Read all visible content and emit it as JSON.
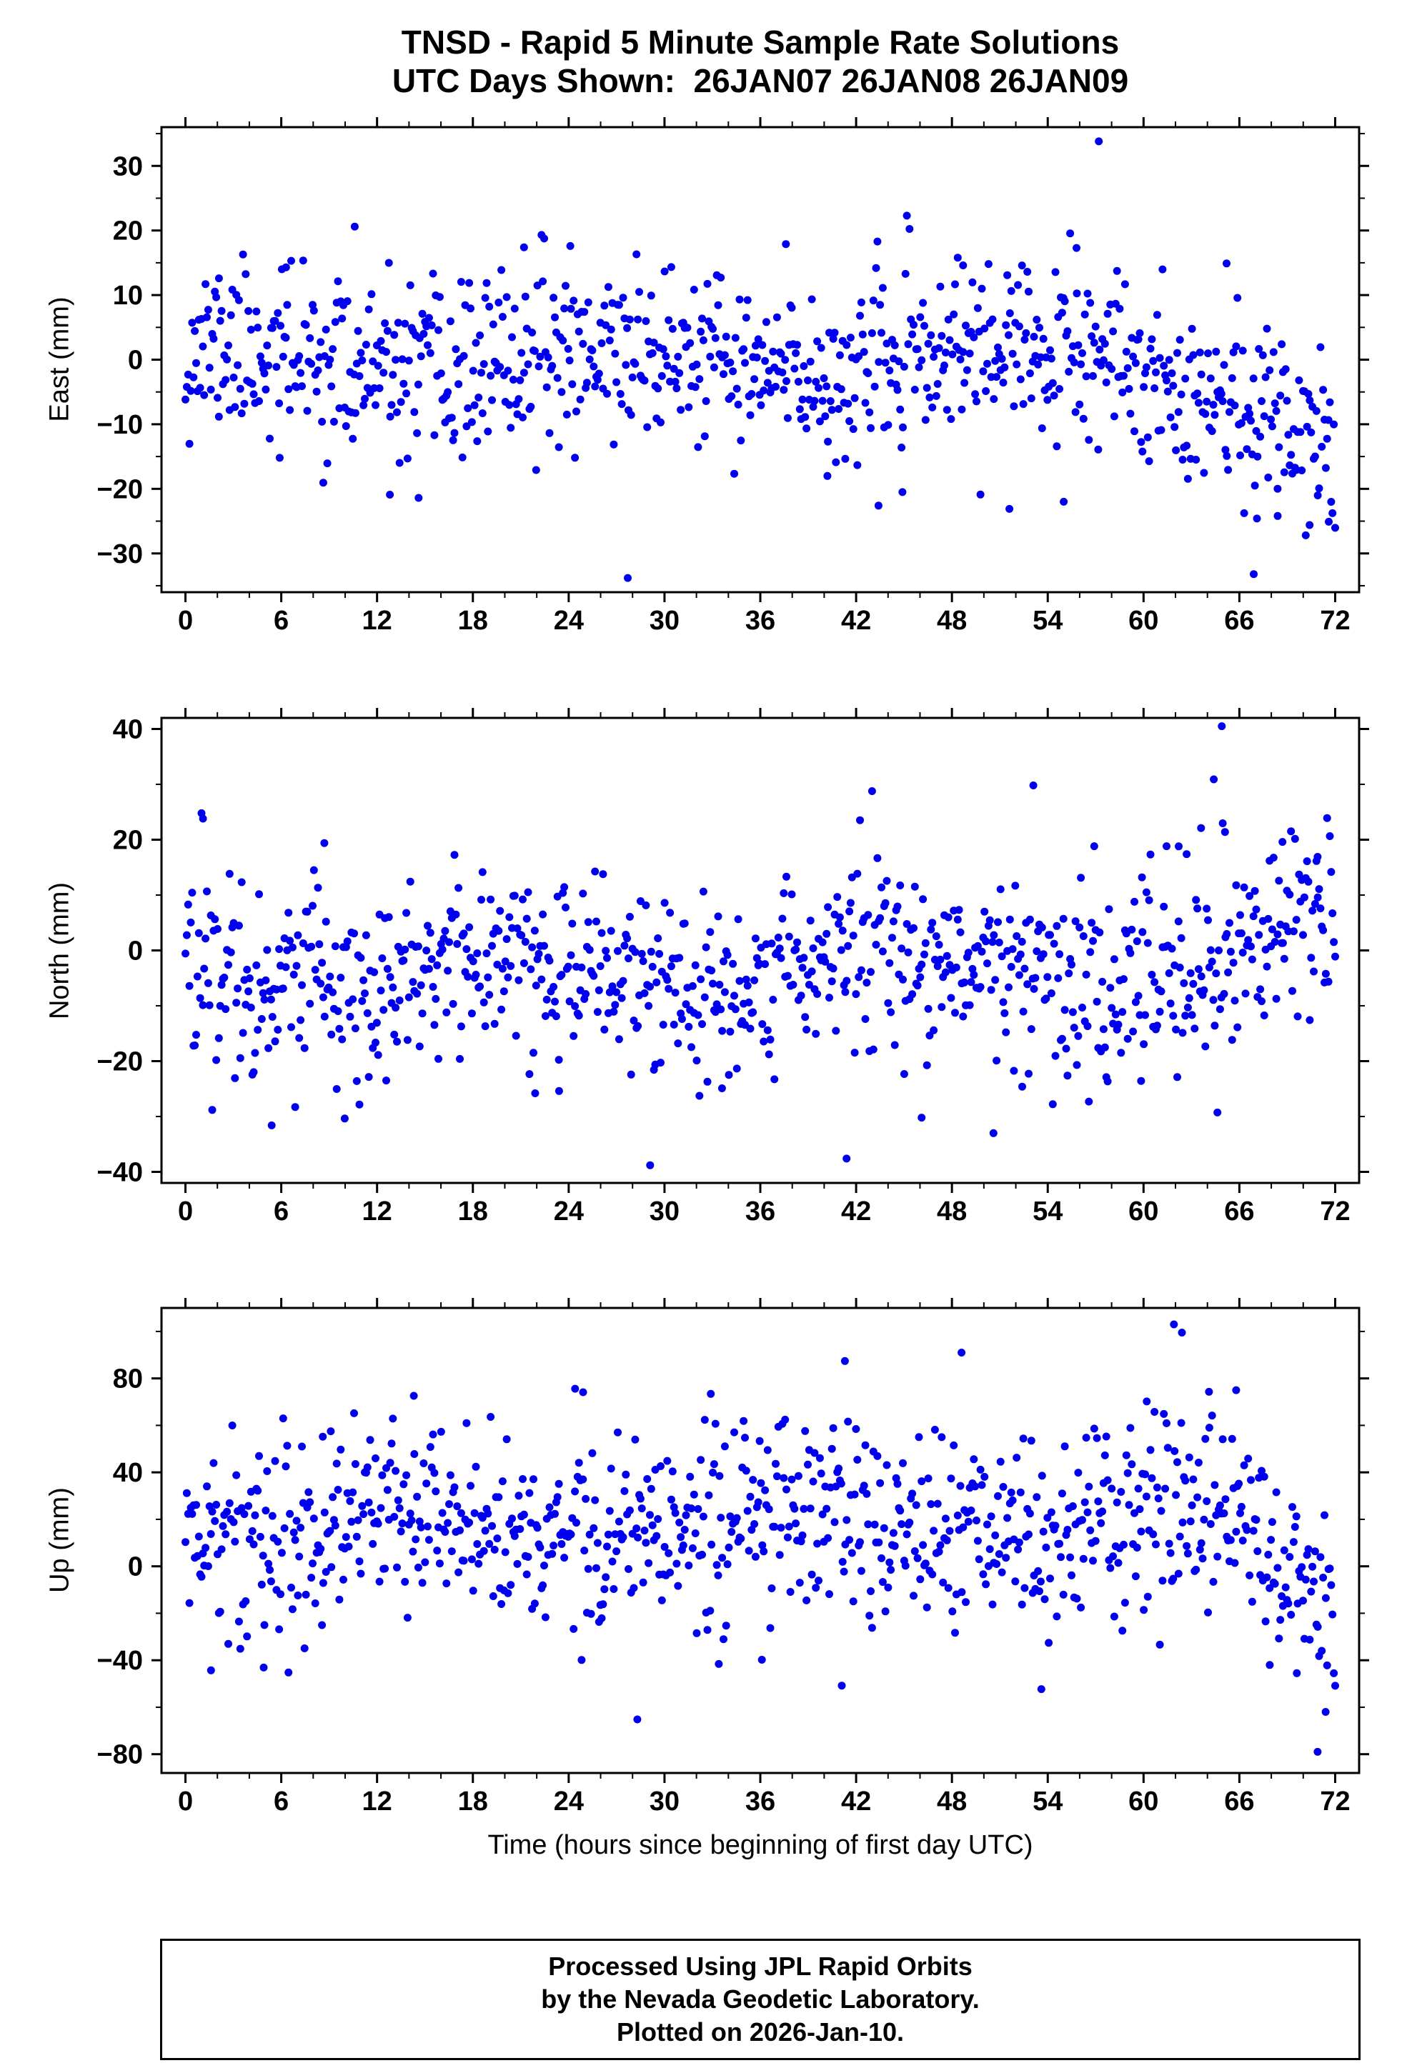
{
  "title": {
    "line1": "TNSD - Rapid 5 Minute Sample Rate Solutions",
    "line2": "UTC Days Shown:  26JAN07 26JAN08 26JAN09"
  },
  "footer": {
    "line1": "Processed Using JPL Rapid Orbits",
    "line2": "by the Nevada Geodetic Laboratory.",
    "line3": "Plotted on 2026-Jan-10."
  },
  "colors": {
    "marker": "#0000ee",
    "axis": "#000000",
    "background": "#ffffff"
  },
  "chart_data": {
    "type": "scatter",
    "title": "TNSD - Rapid 5 Minute Sample Rate Solutions",
    "subtitle": "UTC Days Shown:  26JAN07 26JAN08 26JAN09",
    "station": "TNSD",
    "utc_days_shown": [
      "26JAN07",
      "26JAN08",
      "26JAN09"
    ],
    "xlabel": "Time (hours since beginning of first day UTC)",
    "xlim": [
      -1.5,
      73.5
    ],
    "x_ticks": [
      0,
      6,
      12,
      18,
      24,
      30,
      36,
      42,
      48,
      54,
      60,
      66,
      72
    ],
    "x_minor_step": 2,
    "sample_interval_minutes": 5,
    "grid": false,
    "legend": "none",
    "marker": {
      "shape": "circle",
      "color": "#0000ee",
      "radius_px": 5.5
    },
    "panels": [
      {
        "name": "east",
        "ylabel": "East (mm)",
        "ylim": [
          -36,
          36
        ],
        "y_ticks": [
          -30,
          -20,
          -10,
          0,
          10,
          20,
          30
        ],
        "y_minor": 5,
        "points_spec": {
          "n": 860,
          "seed": 11,
          "mean": -0.5,
          "std": 6.5,
          "wave_amp": 2.2,
          "wave_phase": 0.9,
          "tail_start": 62,
          "tail_shift": -13,
          "clip": [
            -31,
            31
          ]
        },
        "outliers": [
          [
            57.2,
            33.8
          ],
          [
            27.7,
            -33.8
          ],
          [
            66.9,
            -33.2
          ],
          [
            10.6,
            20.6
          ],
          [
            37.6,
            17.9
          ],
          [
            21.2,
            17.4
          ],
          [
            55.8,
            17.3
          ],
          [
            24.1,
            17.6
          ],
          [
            65.2,
            14.9
          ],
          [
            48.7,
            14.6
          ],
          [
            12.8,
            -20.9
          ],
          [
            14.6,
            -21.4
          ],
          [
            43.4,
            -22.6
          ],
          [
            51.6,
            -23.1
          ],
          [
            55.0,
            -22.0
          ],
          [
            67.1,
            -24.6
          ],
          [
            68.4,
            -24.2
          ],
          [
            70.4,
            -25.6
          ],
          [
            71.6,
            -25.1
          ],
          [
            2.1,
            12.6
          ],
          [
            6.3,
            14.3
          ],
          [
            5.9,
            -15.2
          ],
          [
            40.2,
            -18.0
          ],
          [
            44.9,
            -20.5
          ]
        ]
      },
      {
        "name": "north",
        "ylabel": "North (mm)",
        "ylim": [
          -42,
          42
        ],
        "y_ticks": [
          -40,
          -20,
          0,
          20,
          40
        ],
        "y_minor": 10,
        "points_spec": {
          "n": 860,
          "seed": 22,
          "mean": -3.5,
          "std": 8.5,
          "wave_amp": 3.0,
          "wave_phase": 2.3,
          "tail_start": 63,
          "tail_shift": 7,
          "clip": [
            -34,
            34
          ]
        },
        "outliers": [
          [
            64.9,
            40.5
          ],
          [
            29.1,
            -38.8
          ],
          [
            41.4,
            -37.6
          ],
          [
            53.1,
            29.8
          ],
          [
            64.4,
            30.9
          ],
          [
            5.4,
            -31.6
          ],
          [
            50.6,
            -33.0
          ],
          [
            52.4,
            -24.6
          ],
          [
            63.6,
            22.1
          ],
          [
            65.1,
            21.4
          ],
          [
            68.7,
            19.6
          ],
          [
            1.1,
            23.8
          ],
          [
            8.7,
            19.4
          ],
          [
            46.1,
            -30.2
          ],
          [
            21.9,
            -25.8
          ],
          [
            23.4,
            -25.4
          ],
          [
            33.6,
            -24.9
          ],
          [
            59.9,
            13.2
          ],
          [
            62.2,
            18.8
          ],
          [
            70.9,
            16.9
          ]
        ]
      },
      {
        "name": "up",
        "ylabel": "Up (mm)",
        "ylim": [
          -88,
          110
        ],
        "y_ticks": [
          -80,
          -40,
          0,
          40,
          80
        ],
        "y_minor": 20,
        "points_spec": {
          "n": 860,
          "seed": 33,
          "mean": 17,
          "std": 20,
          "wave_amp": 6.0,
          "wave_phase": 4.2,
          "tail_start": 66,
          "tail_shift": -42,
          "clip": [
            -54,
            66
          ]
        },
        "outliers": [
          [
            61.9,
            103.0
          ],
          [
            62.4,
            99.5
          ],
          [
            48.6,
            91.0
          ],
          [
            41.3,
            87.4
          ],
          [
            24.4,
            75.6
          ],
          [
            24.9,
            74.1
          ],
          [
            64.1,
            74.3
          ],
          [
            14.3,
            72.6
          ],
          [
            32.9,
            73.4
          ],
          [
            60.2,
            70.2
          ],
          [
            65.8,
            75.0
          ],
          [
            9.1,
            57.5
          ],
          [
            8.6,
            55.2
          ],
          [
            70.9,
            -79.0
          ],
          [
            28.3,
            -65.2
          ],
          [
            53.6,
            -52.3
          ],
          [
            41.1,
            -50.8
          ],
          [
            1.6,
            -44.3
          ],
          [
            4.9,
            -43.1
          ],
          [
            33.4,
            -41.6
          ],
          [
            67.9,
            -42.0
          ],
          [
            69.6,
            -45.5
          ],
          [
            71.4,
            -62.0
          ],
          [
            36.1,
            -39.8
          ]
        ]
      }
    ]
  }
}
